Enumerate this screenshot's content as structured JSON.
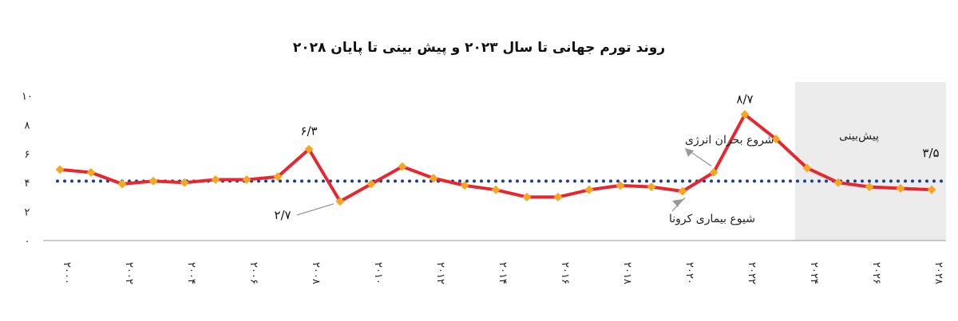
{
  "chart_data": {
    "type": "line",
    "title": "روند تورم جهانی تا سال ۲۰۲۳ و پیش بینی تا پایان ۲۰۲۸",
    "x": [
      2000,
      2001,
      2002,
      2003,
      2004,
      2005,
      2006,
      2007,
      2008,
      2009,
      2010,
      2011,
      2012,
      2013,
      2014,
      2015,
      2016,
      2017,
      2018,
      2019,
      2020,
      2021,
      2022,
      2023,
      2024,
      2025,
      2026,
      2027,
      2028
    ],
    "x_tick_labels": [
      "۲۰۰۰",
      "۲۰۰۲",
      "۲۰۰۴",
      "۲۰۰۶",
      "۲۰۰۸",
      "۲۰۱۰",
      "۲۰۱۲",
      "۲۰۱۴",
      "۲۰۱۶",
      "۲۰۱۸",
      "۲۰۲۰",
      "۲۰۲۲",
      "۲۰۲۴",
      "۲۰۲۶",
      "۲۰۲۸"
    ],
    "series": [
      {
        "color": "#e8262d",
        "marker_color": "#f5a623",
        "values": [
          4.9,
          4.7,
          3.9,
          4.1,
          4.0,
          4.2,
          4.2,
          4.4,
          6.3,
          2.7,
          3.9,
          5.1,
          4.3,
          3.8,
          3.5,
          3.0,
          3.0,
          3.5,
          3.8,
          3.7,
          3.4,
          4.7,
          8.7,
          7.0,
          5.0,
          4.0,
          3.7,
          3.6,
          3.5
        ]
      }
    ],
    "reference_line": {
      "value": 4.1,
      "style": "dotted",
      "color": "#1d3f8f"
    },
    "forecast_region": {
      "from": 2024,
      "to": 2028,
      "label": "پیش‌بینی",
      "color": "#ececec"
    },
    "ylim": [
      0,
      10
    ],
    "y_ticks": [
      0,
      2,
      4,
      6,
      8,
      10
    ],
    "y_tick_labels": [
      "۰",
      "۲",
      "۴",
      "۶",
      "۸",
      "۱۰"
    ],
    "annotations": {
      "peak_2008": "۶/۳",
      "low_2009": "۲/۷",
      "peak_2022": "۸/۷",
      "end_2028": "۳/۵",
      "energy_crisis": "شروع بحران انرژی",
      "covid": "شیوع بیماری کرونا"
    },
    "xlabel": "",
    "ylabel": "",
    "grid": false
  }
}
